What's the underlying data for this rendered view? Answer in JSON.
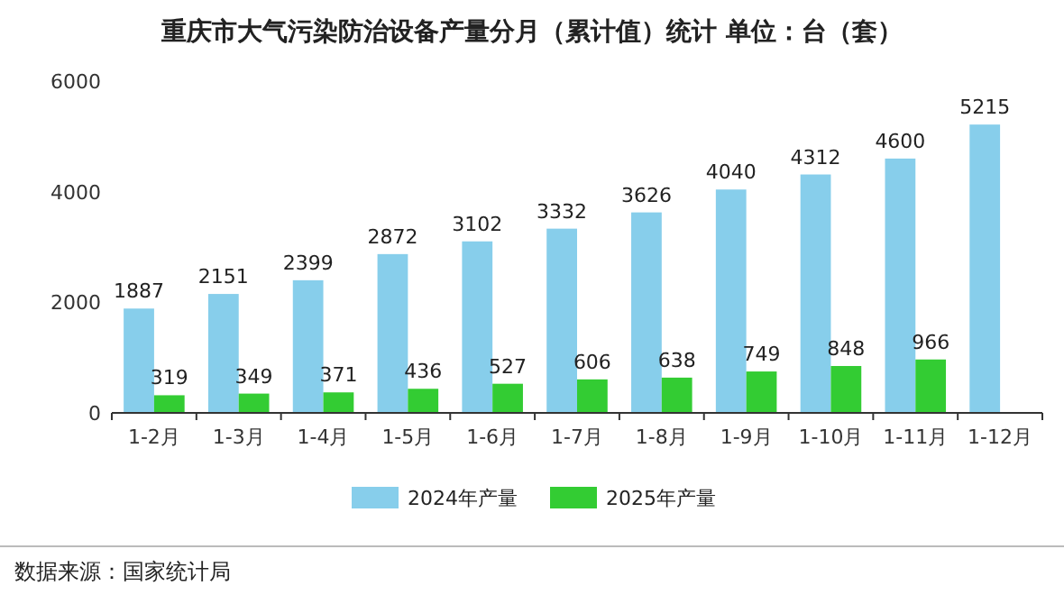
{
  "chart_data": {
    "type": "bar",
    "title": "重庆市大气污染防治设备产量分月（累计值）统计  单位：台（套）",
    "categories": [
      "1-2月",
      "1-3月",
      "1-4月",
      "1-5月",
      "1-6月",
      "1-7月",
      "1-8月",
      "1-9月",
      "1-10月",
      "1-11月",
      "1-12月"
    ],
    "series": [
      {
        "name": "2024年产量",
        "color": "#87ceeb",
        "values": [
          1887,
          2151,
          2399,
          2872,
          3102,
          3332,
          3626,
          4040,
          4312,
          4600,
          5215
        ]
      },
      {
        "name": "2025年产量",
        "color": "#33cc33",
        "values": [
          319,
          349,
          371,
          436,
          527,
          606,
          638,
          749,
          848,
          966,
          null
        ]
      }
    ],
    "ylim": [
      0,
      6000
    ],
    "yticks": [
      0,
      2000,
      4000,
      6000
    ],
    "data_labels": true,
    "legend": "bottom",
    "annotations": [
      "数据来源：国家统计局"
    ]
  }
}
